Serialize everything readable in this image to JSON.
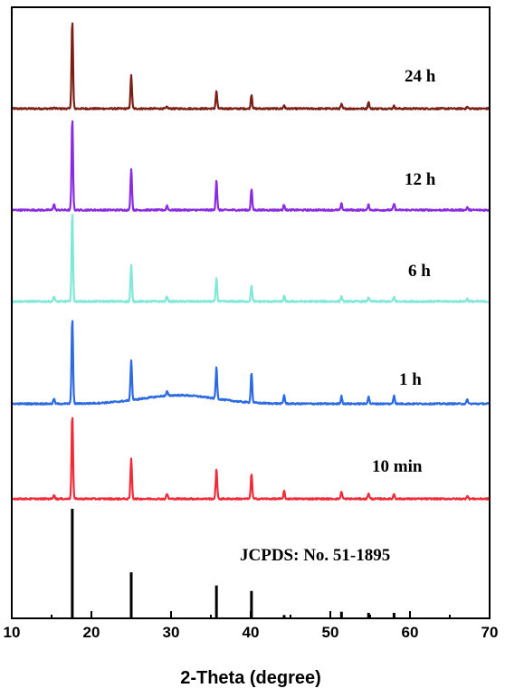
{
  "chart_data": {
    "type": "line",
    "xlabel": "2-Theta (degree)",
    "ylabel": "",
    "xlim": [
      10,
      70
    ],
    "x_ticks": [
      10,
      20,
      30,
      40,
      50,
      60,
      70
    ],
    "y_ticks_shown": false,
    "grid": false,
    "legend": "none",
    "peak_positions": [
      15.3,
      17.6,
      25.0,
      29.5,
      35.7,
      40.1,
      44.2,
      51.4,
      54.8,
      58.0,
      67.2
    ],
    "series": [
      {
        "name": "24 h",
        "color": "#7b1e14",
        "offset": 4,
        "peak_heights": [
          0.01,
          1.0,
          0.38,
          0.02,
          0.2,
          0.16,
          0.04,
          0.05,
          0.08,
          0.03,
          0.02
        ],
        "hump": 0.0
      },
      {
        "name": "12 h",
        "color": "#8a2be2",
        "offset": 3,
        "peak_heights": [
          0.07,
          1.0,
          0.46,
          0.05,
          0.33,
          0.23,
          0.06,
          0.07,
          0.06,
          0.07,
          0.03
        ],
        "hump": 0.0
      },
      {
        "name": "6 h",
        "color": "#7fe8d8",
        "offset": 2,
        "peak_heights": [
          0.06,
          1.0,
          0.41,
          0.06,
          0.27,
          0.18,
          0.06,
          0.06,
          0.05,
          0.05,
          0.03
        ],
        "hump": 0.0
      },
      {
        "name": "1 h",
        "color": "#2b6ae0",
        "offset": 1,
        "peak_heights": [
          0.06,
          1.0,
          0.47,
          0.05,
          0.37,
          0.35,
          0.1,
          0.09,
          0.09,
          0.1,
          0.05
        ],
        "hump": 0.1
      },
      {
        "name": "10 min",
        "color": "#ef2b3a",
        "offset": 0,
        "peak_heights": [
          0.05,
          1.0,
          0.48,
          0.06,
          0.36,
          0.3,
          0.09,
          0.09,
          0.07,
          0.06,
          0.04
        ],
        "hump": 0.0
      }
    ],
    "reference": {
      "name": "JCPDS: No. 51-1895",
      "positions": [
        17.6,
        25.0,
        35.7,
        40.1,
        44.2,
        51.4,
        54.8,
        58.0
      ],
      "intensities": [
        100,
        42,
        30,
        25,
        3,
        6,
        5,
        5
      ]
    }
  }
}
